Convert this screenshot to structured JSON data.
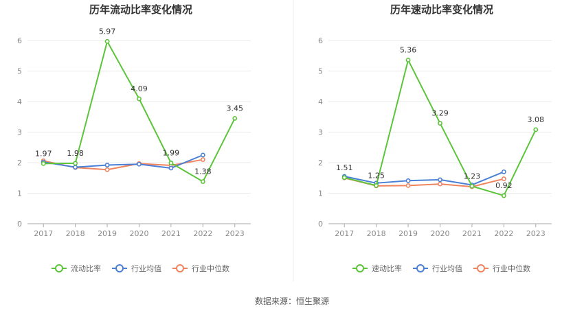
{
  "chart_data": [
    {
      "type": "line",
      "title": "历年流动比率变化情况",
      "categories": [
        "2017",
        "2018",
        "2019",
        "2020",
        "2021",
        "2022",
        "2023"
      ],
      "ylim": [
        0,
        6
      ],
      "yticks": [
        0,
        1,
        2,
        3,
        4,
        5,
        6
      ],
      "series": [
        {
          "name": "流动比率",
          "color": "#5cc43a",
          "values": [
            1.97,
            1.98,
            5.97,
            4.09,
            1.99,
            1.38,
            3.45
          ],
          "labeled": true
        },
        {
          "name": "行业均值",
          "color": "#4a7fd6",
          "values": [
            2.02,
            1.85,
            1.92,
            1.95,
            1.82,
            2.25,
            null
          ]
        },
        {
          "name": "行业中位数",
          "color": "#f0845e",
          "values": [
            2.06,
            1.84,
            1.77,
            1.97,
            1.91,
            2.1,
            null
          ]
        }
      ]
    },
    {
      "type": "line",
      "title": "历年速动比率变化情况",
      "categories": [
        "2017",
        "2018",
        "2019",
        "2020",
        "2021",
        "2022",
        "2023"
      ],
      "ylim": [
        0,
        6
      ],
      "yticks": [
        0,
        1,
        2,
        3,
        4,
        5,
        6
      ],
      "series": [
        {
          "name": "速动比率",
          "color": "#5cc43a",
          "values": [
            1.51,
            1.25,
            5.36,
            3.29,
            1.23,
            0.92,
            3.08
          ],
          "labeled": true
        },
        {
          "name": "行业均值",
          "color": "#4a7fd6",
          "values": [
            1.55,
            1.33,
            1.41,
            1.44,
            1.27,
            1.7,
            null
          ]
        },
        {
          "name": "行业中位数",
          "color": "#f0845e",
          "values": [
            1.5,
            1.24,
            1.25,
            1.3,
            1.21,
            1.47,
            null
          ]
        }
      ]
    }
  ],
  "footer": "数据来源：恒生聚源"
}
